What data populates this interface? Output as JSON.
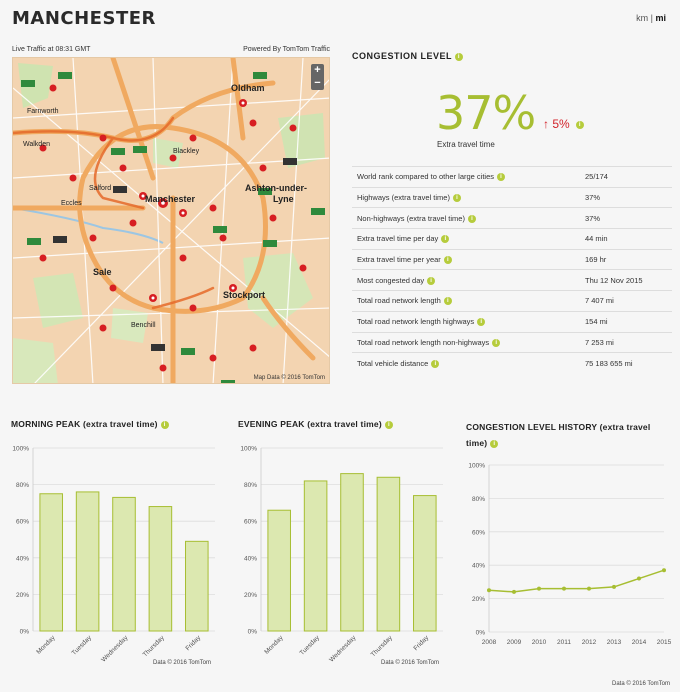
{
  "city": "MANCHESTER",
  "units": {
    "km": "km",
    "sep": "|",
    "mi": "mi",
    "active": "mi"
  },
  "map": {
    "live_traffic": "Live Traffic at 08:31 GMT",
    "powered_by": "Powered By TomTom Traffic",
    "zoom_in": "+",
    "zoom_out": "−",
    "credit": "Map Data © 2016 TomTom",
    "places": {
      "oldham": "Oldham",
      "walkden": "Walkden",
      "manchester": "Manchester",
      "ashton": "Ashton-under-",
      "lyne": "Lyne",
      "salford": "Salford",
      "sale": "Sale",
      "stockport": "Stockport",
      "blackley": "Blackley",
      "eccles": "Eccles",
      "farnworth": "Farnworth",
      "benchill": "Benchill"
    }
  },
  "congestion": {
    "title": "CONGESTION LEVEL",
    "value": "37%",
    "change": "5%",
    "change_arrow": "↑",
    "label": "Extra travel time",
    "rows": [
      {
        "label": "World rank compared to other large cities",
        "value": "25/174",
        "info": true
      },
      {
        "label": "Highways (extra travel time)",
        "value": "37%",
        "info": true
      },
      {
        "label": "Non-highways (extra travel time)",
        "value": "37%",
        "info": true
      },
      {
        "label": "Extra travel time per day",
        "value": "44 min",
        "info": true
      },
      {
        "label": "Extra travel time per year",
        "value": "169 hr",
        "info": true
      },
      {
        "label": "Most congested day",
        "value": "Thu 12 Nov 2015",
        "info": true
      },
      {
        "label": "Total road network length",
        "value": "7 407 mi",
        "info": true
      },
      {
        "label": "Total road network length highways",
        "value": "154 mi",
        "info": true
      },
      {
        "label": "Total road network length non-highways",
        "value": "7 253 mi",
        "info": true
      },
      {
        "label": "Total vehicle distance",
        "value": "75 183 655 mi",
        "info": true
      }
    ]
  },
  "info_glyph": "i",
  "chart_data": [
    {
      "type": "bar",
      "title": "MORNING PEAK (extra travel time)",
      "categories": [
        "Monday",
        "Tuesday",
        "Wednesday",
        "Thursday",
        "Friday"
      ],
      "values": [
        75,
        76,
        73,
        68,
        49
      ],
      "yticks": [
        "0%",
        "20%",
        "40%",
        "60%",
        "80%",
        "100%"
      ],
      "ylim": [
        0,
        100
      ],
      "grid": true,
      "credit": "Data © 2016 TomTom"
    },
    {
      "type": "bar",
      "title": "EVENING PEAK (extra travel time)",
      "categories": [
        "Monday",
        "Tuesday",
        "Wednesday",
        "Thursday",
        "Friday"
      ],
      "values": [
        66,
        82,
        86,
        84,
        74
      ],
      "yticks": [
        "0%",
        "20%",
        "40%",
        "60%",
        "80%",
        "100%"
      ],
      "ylim": [
        0,
        100
      ],
      "grid": true,
      "credit": "Data © 2016 TomTom"
    },
    {
      "type": "line",
      "title": "CONGESTION LEVEL HISTORY (extra travel time)",
      "x": [
        "2008",
        "2009",
        "2010",
        "2011",
        "2012",
        "2013",
        "2014",
        "2015"
      ],
      "values": [
        25,
        24,
        26,
        26,
        26,
        27,
        32,
        37
      ],
      "yticks": [
        "0%",
        "20%",
        "40%",
        "60%",
        "80%",
        "100%"
      ],
      "ylim": [
        0,
        100
      ],
      "grid": true,
      "credit": "Data © 2016 TomTom"
    }
  ],
  "colors": {
    "accent": "#a7be32",
    "bar_fill": "#dce8b0",
    "bar_stroke": "#a7be32",
    "change": "#d2232a"
  }
}
